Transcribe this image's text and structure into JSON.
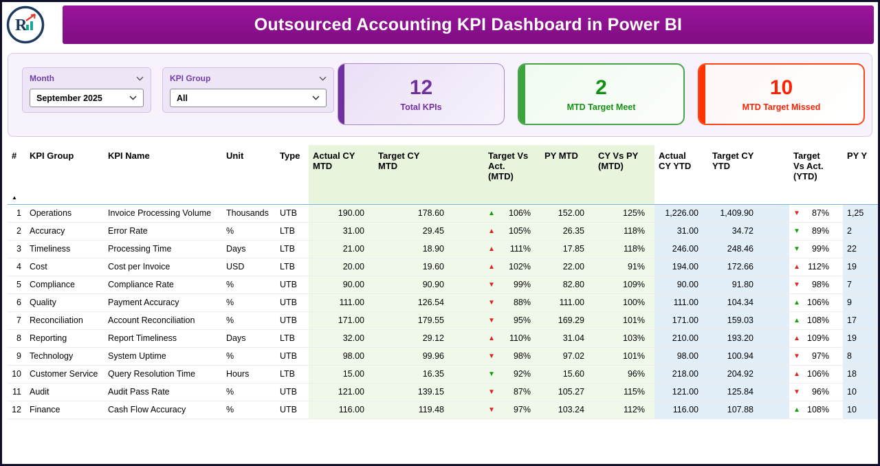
{
  "header": {
    "title": "Outsourced Accounting KPI Dashboard in Power BI",
    "logo_letter": "R"
  },
  "slicers": {
    "month": {
      "label": "Month",
      "value": "September 2025"
    },
    "kpi_group": {
      "label": "KPI Group",
      "value": "All"
    }
  },
  "cards": {
    "total": {
      "value": "12",
      "label": "Total KPIs",
      "color": "#7030A0"
    },
    "meet": {
      "value": "2",
      "label": "MTD Target Meet",
      "color": "#149114"
    },
    "missed": {
      "value": "10",
      "label": "MTD Target Missed",
      "color": "#FB2304"
    }
  },
  "colors": {
    "header_band": "#8C1190",
    "trend_good": "#12A012",
    "trend_bad": "#E32020",
    "mtd_column_tint": "#F0F8EA",
    "ytd_column_tint": "#E2EFF9"
  },
  "table": {
    "sort_glyph": "▲",
    "columns": [
      "#",
      "KPI Group",
      "KPI Name",
      "Unit",
      "Type",
      "Actual CY MTD",
      "Target CY MTD",
      "Target Vs Act. (MTD)",
      "PY MTD",
      "CY Vs PY (MTD)",
      "Actual CY YTD",
      "Target CY YTD",
      "Target Vs Act. (YTD)",
      "PY Y"
    ],
    "col_aligns": [
      "right",
      "left",
      "left",
      "left",
      "left",
      "right",
      "right",
      "trend",
      "right",
      "right",
      "right",
      "right",
      "trend",
      "left"
    ],
    "col_groups": [
      "plain",
      "plain",
      "plain",
      "plain",
      "plain",
      "green",
      "green",
      "green",
      "green",
      "green",
      "blue",
      "blue",
      "plain",
      "blue"
    ],
    "header_groups": [
      "plain",
      "plain",
      "plain",
      "plain",
      "plain",
      "green",
      "green",
      "green",
      "green",
      "green",
      "plain",
      "plain",
      "plain",
      "plain"
    ],
    "rows": [
      [
        "1",
        "Operations",
        "Invoice Processing Volume",
        "Thousands",
        "UTB",
        "190.00",
        "178.60",
        {
          "dir": "up",
          "ok": true,
          "value": "106%"
        },
        "152.00",
        "125%",
        "1,226.00",
        "1,409.90",
        {
          "dir": "down",
          "ok": false,
          "value": "87%"
        },
        "1,25"
      ],
      [
        "2",
        "Accuracy",
        "Error Rate",
        "%",
        "LTB",
        "31.00",
        "29.45",
        {
          "dir": "up",
          "ok": false,
          "value": "105%"
        },
        "26.35",
        "118%",
        "31.00",
        "34.72",
        {
          "dir": "down",
          "ok": true,
          "value": "89%"
        },
        "2"
      ],
      [
        "3",
        "Timeliness",
        "Processing Time",
        "Days",
        "LTB",
        "21.00",
        "18.90",
        {
          "dir": "up",
          "ok": false,
          "value": "111%"
        },
        "17.85",
        "118%",
        "246.00",
        "248.46",
        {
          "dir": "down",
          "ok": true,
          "value": "99%"
        },
        "22"
      ],
      [
        "4",
        "Cost",
        "Cost per Invoice",
        "USD",
        "LTB",
        "20.00",
        "19.60",
        {
          "dir": "up",
          "ok": false,
          "value": "102%"
        },
        "22.00",
        "91%",
        "194.00",
        "172.66",
        {
          "dir": "up",
          "ok": false,
          "value": "112%"
        },
        "19"
      ],
      [
        "5",
        "Compliance",
        "Compliance Rate",
        "%",
        "UTB",
        "90.00",
        "90.90",
        {
          "dir": "down",
          "ok": false,
          "value": "99%"
        },
        "82.80",
        "109%",
        "90.00",
        "91.80",
        {
          "dir": "down",
          "ok": false,
          "value": "98%"
        },
        "7"
      ],
      [
        "6",
        "Quality",
        "Payment Accuracy",
        "%",
        "UTB",
        "111.00",
        "126.54",
        {
          "dir": "down",
          "ok": false,
          "value": "88%"
        },
        "111.00",
        "100%",
        "111.00",
        "104.34",
        {
          "dir": "up",
          "ok": true,
          "value": "106%"
        },
        "9"
      ],
      [
        "7",
        "Reconciliation",
        "Account Reconciliation",
        "%",
        "UTB",
        "171.00",
        "179.55",
        {
          "dir": "down",
          "ok": false,
          "value": "95%"
        },
        "169.29",
        "101%",
        "171.00",
        "159.03",
        {
          "dir": "up",
          "ok": true,
          "value": "108%"
        },
        "17"
      ],
      [
        "8",
        "Reporting",
        "Report Timeliness",
        "Days",
        "LTB",
        "32.00",
        "29.12",
        {
          "dir": "up",
          "ok": false,
          "value": "110%"
        },
        "31.04",
        "103%",
        "210.00",
        "193.20",
        {
          "dir": "up",
          "ok": false,
          "value": "109%"
        },
        "19"
      ],
      [
        "9",
        "Technology",
        "System Uptime",
        "%",
        "UTB",
        "98.00",
        "99.96",
        {
          "dir": "down",
          "ok": false,
          "value": "98%"
        },
        "97.02",
        "101%",
        "98.00",
        "100.94",
        {
          "dir": "down",
          "ok": false,
          "value": "97%"
        },
        "8"
      ],
      [
        "10",
        "Customer Service",
        "Query Resolution Time",
        "Hours",
        "LTB",
        "15.00",
        "16.35",
        {
          "dir": "down",
          "ok": true,
          "value": "92%"
        },
        "15.60",
        "96%",
        "218.00",
        "204.92",
        {
          "dir": "up",
          "ok": false,
          "value": "106%"
        },
        "18"
      ],
      [
        "11",
        "Audit",
        "Audit Pass Rate",
        "%",
        "UTB",
        "121.00",
        "139.15",
        {
          "dir": "down",
          "ok": false,
          "value": "87%"
        },
        "105.27",
        "115%",
        "121.00",
        "125.84",
        {
          "dir": "down",
          "ok": false,
          "value": "96%"
        },
        "10"
      ],
      [
        "12",
        "Finance",
        "Cash Flow Accuracy",
        "%",
        "UTB",
        "116.00",
        "119.48",
        {
          "dir": "down",
          "ok": false,
          "value": "97%"
        },
        "103.24",
        "112%",
        "116.00",
        "107.88",
        {
          "dir": "up",
          "ok": true,
          "value": "108%"
        },
        "10"
      ]
    ]
  }
}
